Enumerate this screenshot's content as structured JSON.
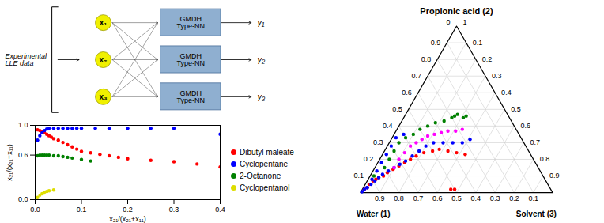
{
  "chart_data": [
    {
      "type": "diagram",
      "source": "Experimental\nLLE data",
      "inputs": {
        "labels": [
          "x₁",
          "x₂",
          "x₃"
        ],
        "color": "#f0f000"
      },
      "blocks": {
        "labels": [
          "GMDH\nType-NN",
          "GMDH\nType-NN",
          "GMDH\nType-NN"
        ],
        "color": "#8fafd0"
      },
      "outputs": {
        "labels": [
          "γ₁",
          "γ₂",
          "γ₃"
        ]
      }
    },
    {
      "type": "scatter",
      "xlabel": "x₂₁/(x₂₁+x₁₁)",
      "ylabel": "x₂₁/(x₂₁+x₁₁)",
      "xlim": [
        0,
        0.4
      ],
      "ylim": [
        0,
        1
      ],
      "xticks": [
        {
          "value": 0,
          "label": "0.0"
        },
        0.1,
        0.2,
        0.3,
        0.4
      ],
      "yticks": [
        {
          "value": 0,
          "label": "0.0"
        },
        0.6,
        {
          "value": 1,
          "label": "1.0"
        }
      ],
      "grid": false,
      "legend": "right",
      "series": [
        {
          "name": "Dibutyl maleate",
          "color": "red",
          "x": [
            0.005,
            0.01,
            0.015,
            0.02,
            0.025,
            0.03,
            0.035,
            0.04,
            0.05,
            0.06,
            0.07,
            0.08,
            0.09,
            0.1,
            0.12,
            0.14,
            0.16,
            0.18,
            0.2,
            0.25,
            0.3,
            0.35,
            0.4
          ],
          "values": [
            0.94,
            0.93,
            0.91,
            0.9,
            0.88,
            0.86,
            0.84,
            0.82,
            0.8,
            0.77,
            0.74,
            0.71,
            0.68,
            0.65,
            0.63,
            0.61,
            0.59,
            0.57,
            0.55,
            0.53,
            0.51,
            0.48,
            0.44
          ]
        },
        {
          "name": "Cyclopentane",
          "color": "blue",
          "x": [
            0.005,
            0.01,
            0.015,
            0.02,
            0.025,
            0.03,
            0.04,
            0.05,
            0.06,
            0.07,
            0.08,
            0.09,
            0.1,
            0.13,
            0.16,
            0.2,
            0.25,
            0.3,
            0.4
          ],
          "values": [
            0.8,
            0.86,
            0.9,
            0.93,
            0.95,
            0.96,
            0.96,
            0.96,
            0.96,
            0.96,
            0.96,
            0.96,
            0.96,
            0.96,
            0.96,
            0.96,
            0.96,
            0.96,
            0.88
          ]
        },
        {
          "name": "2-Octanone",
          "color": "green",
          "x": [
            0.005,
            0.01,
            0.015,
            0.02,
            0.025,
            0.03,
            0.04,
            0.05,
            0.06,
            0.07,
            0.08,
            0.1,
            0.12
          ],
          "values": [
            0.59,
            0.6,
            0.6,
            0.6,
            0.6,
            0.6,
            0.59,
            0.59,
            0.58,
            0.57,
            0.56,
            0.54,
            0.52
          ]
        },
        {
          "name": "Cyclopentanol",
          "color": "#dddd00",
          "x": [
            0.005,
            0.01,
            0.015,
            0.02,
            0.025,
            0.03,
            0.04
          ],
          "values": [
            0.03,
            0.06,
            0.08,
            0.1,
            0.11,
            0.12,
            0.13
          ]
        }
      ]
    },
    {
      "type": "ternary",
      "title": "Propionic acid (2)",
      "labels": {
        "c1": "Water (1)",
        "c3": "Solvent (3)"
      },
      "ticks": {
        "c2": [
          0.1,
          0.2,
          0.3,
          0.4,
          0.5,
          0.6,
          0.7,
          0.8,
          0.9
        ],
        "c3": [
          0.9,
          0.8,
          0.7,
          0.6,
          0.5,
          0.4,
          0.3,
          0.2,
          0.1
        ],
        "c1": [
          0.1,
          0.2,
          0.3,
          0.4,
          0.5,
          0.6,
          0.7,
          0.8,
          0.9
        ]
      },
      "annotations": [
        "0",
        "1"
      ],
      "grid": true,
      "series": [
        {
          "color": "red",
          "values": [
            [
              0.97,
              0.02
            ],
            [
              0.95,
              0.03
            ],
            [
              0.93,
              0.05
            ],
            [
              0.9,
              0.07
            ],
            [
              0.88,
              0.08
            ],
            [
              0.86,
              0.09
            ],
            [
              0.83,
              0.1
            ],
            [
              0.8,
              0.12
            ],
            [
              0.76,
              0.14
            ],
            [
              0.72,
              0.16
            ],
            [
              0.68,
              0.18
            ],
            [
              0.64,
              0.2
            ],
            [
              0.6,
              0.22
            ],
            [
              0.55,
              0.24
            ],
            [
              0.5,
              0.25
            ],
            [
              0.46,
              0.26
            ],
            [
              0.42,
              0.25
            ],
            [
              0.38,
              0.24
            ],
            [
              0.34,
              0.23
            ],
            [
              0.5,
              0.02
            ],
            [
              0.52,
              0.02
            ]
          ]
        },
        {
          "color": "blue",
          "values": [
            [
              0.97,
              0.02
            ],
            [
              0.95,
              0.03
            ],
            [
              0.92,
              0.05
            ],
            [
              0.89,
              0.07
            ],
            [
              0.86,
              0.09
            ],
            [
              0.83,
              0.11
            ],
            [
              0.79,
              0.13
            ],
            [
              0.75,
              0.15
            ],
            [
              0.71,
              0.17
            ],
            [
              0.67,
              0.19
            ],
            [
              0.62,
              0.22
            ],
            [
              0.57,
              0.25
            ],
            [
              0.52,
              0.28
            ],
            [
              0.47,
              0.3
            ],
            [
              0.42,
              0.3
            ],
            [
              0.37,
              0.3
            ],
            [
              0.32,
              0.3
            ],
            [
              0.27,
              0.32
            ],
            [
              0.6,
              0.35
            ],
            [
              0.65,
              0.33
            ],
            [
              0.7,
              0.28
            ],
            [
              0.75,
              0.23
            ],
            [
              0.8,
              0.18
            ],
            [
              0.85,
              0.13
            ],
            [
              0.9,
              0.08
            ],
            [
              0.95,
              0.03
            ],
            [
              0.99,
              0.005
            ]
          ]
        },
        {
          "color": "green",
          "values": [
            [
              0.3,
              0.45
            ],
            [
              0.28,
              0.46
            ],
            [
              0.26,
              0.47
            ],
            [
              0.24,
              0.45
            ],
            [
              0.22,
              0.46
            ],
            [
              0.35,
              0.43
            ],
            [
              0.4,
              0.42
            ],
            [
              0.45,
              0.4
            ],
            [
              0.5,
              0.38
            ],
            [
              0.55,
              0.35
            ],
            [
              0.6,
              0.33
            ],
            [
              0.65,
              0.3
            ],
            [
              0.7,
              0.25
            ],
            [
              0.75,
              0.2
            ],
            [
              0.8,
              0.15
            ],
            [
              0.88,
              0.1
            ]
          ]
        },
        {
          "color": "magenta",
          "values": [
            [
              0.28,
              0.38
            ],
            [
              0.32,
              0.37
            ],
            [
              0.36,
              0.37
            ],
            [
              0.4,
              0.36
            ],
            [
              0.44,
              0.35
            ],
            [
              0.48,
              0.34
            ],
            [
              0.52,
              0.32
            ],
            [
              0.56,
              0.3
            ],
            [
              0.6,
              0.28
            ],
            [
              0.65,
              0.24
            ],
            [
              0.7,
              0.2
            ],
            [
              0.75,
              0.15
            ]
          ]
        }
      ]
    }
  ]
}
